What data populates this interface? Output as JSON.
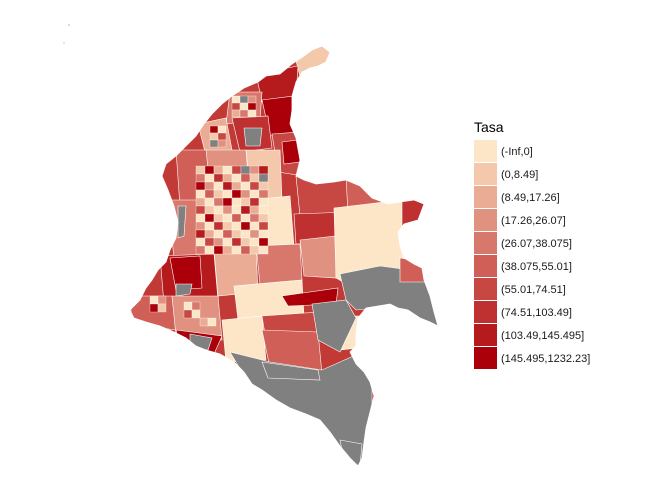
{
  "legend": {
    "title": "Tasa",
    "classes": [
      {
        "label": "(-Inf,0]",
        "color": "#fde6c8"
      },
      {
        "label": "(0,8.49]",
        "color": "#f3c8ab"
      },
      {
        "label": "(8.49,17.26]",
        "color": "#eaac94"
      },
      {
        "label": "(17.26,26.07]",
        "color": "#e1917f"
      },
      {
        "label": "(26.07,38.075]",
        "color": "#d8786c"
      },
      {
        "label": "(38.075,55.01]",
        "color": "#cf5f57"
      },
      {
        "label": "(55.01,74.51]",
        "color": "#c74843"
      },
      {
        "label": "(74.51,103.49]",
        "color": "#bf3030"
      },
      {
        "label": "(103.49,145.495]",
        "color": "#b51a1d"
      },
      {
        "label": "(145.495,1232.23]",
        "color": "#ab000a"
      }
    ]
  },
  "no_data_color": "#808080"
}
